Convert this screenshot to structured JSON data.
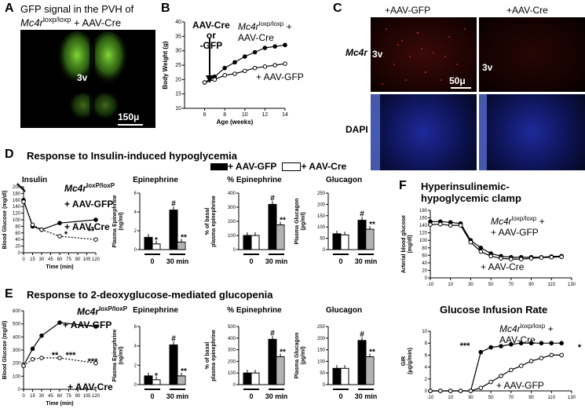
{
  "panels": {
    "A": "A",
    "B": "B",
    "C": "C",
    "D": "D",
    "E": "E",
    "F": "F"
  },
  "panelA": {
    "title_line1": "GFP signal in the  PVH of",
    "title_gene": "Mc4r",
    "title_sup": "loxp/loxp",
    "title_tail": " + AAV-Cre",
    "ventricle": "3v",
    "scale": "150μ"
  },
  "panelC": {
    "col1": "+AAV-GFP",
    "col2": "+AAV-Cre",
    "row1": "Mc4r",
    "row2": "DAPI",
    "ventricle": "3v",
    "scale": "50μ"
  },
  "titles": {
    "D": "Response to Insulin-induced hypoglycemia",
    "E": "Response to 2-deoxyglucose-mediated glucopenia",
    "F_clamp": "Hyperinsulinemic-\nhypoglycemic clamp",
    "F_gir": "Glucose Infusion Rate"
  },
  "legend": {
    "gfp": "+ AAV-GFP",
    "cre": "+ AAV-Cre"
  },
  "colors": {
    "filled": "#000000",
    "hatched": "#ffffff",
    "gfp_green": "#7fd83a",
    "mc4r_red": "#c0302a",
    "dapi_blue": "#3a5cff"
  },
  "chart_data": [
    {
      "id": "B",
      "type": "line",
      "xlabel": "Age (weeks)",
      "ylabel": "Body Weight (g)",
      "xlim": [
        4,
        14
      ],
      "ylim": [
        10,
        40
      ],
      "xticks": [
        6,
        8,
        10,
        12,
        14
      ],
      "yticks": [
        10,
        15,
        20,
        25,
        30,
        35,
        40
      ],
      "annotation": "AAV-Cre\nor\n-GFP",
      "series": [
        {
          "name": "Mc4r loxp/loxp + AAV-Cre",
          "marker": "filled",
          "x": [
            6,
            7,
            8,
            9,
            10,
            11,
            12,
            13,
            14
          ],
          "y": [
            19,
            21,
            24,
            26,
            28,
            29.5,
            31,
            31.5,
            32
          ]
        },
        {
          "name": "+ AAV-GFP",
          "marker": "open",
          "x": [
            6,
            7,
            8,
            9,
            10,
            11,
            12,
            13,
            14
          ],
          "y": [
            19,
            20,
            21.5,
            22,
            23,
            24,
            24.5,
            25,
            25.5
          ]
        }
      ]
    },
    {
      "id": "D1",
      "type": "line",
      "title": "Insulin",
      "xlabel": "Time (min)",
      "ylabel": "Blood Glucose (mg/dl)",
      "xlim": [
        0,
        120
      ],
      "ylim": [
        0,
        200
      ],
      "xticks": [
        0,
        15,
        30,
        45,
        60,
        75,
        90,
        105,
        120
      ],
      "yticks": [
        0,
        20,
        40,
        60,
        80,
        100,
        120,
        140,
        160,
        180,
        200
      ],
      "series": [
        {
          "name": "+ AAV-GFP",
          "marker": "filled",
          "x": [
            0,
            15,
            30,
            60,
            120
          ],
          "y": [
            160,
            80,
            70,
            90,
            100
          ]
        },
        {
          "name": "+ AAV-Cre",
          "marker": "open",
          "x": [
            0,
            15,
            30,
            60,
            120
          ],
          "y": [
            155,
            85,
            70,
            50,
            40
          ]
        }
      ],
      "stars": [
        "*",
        "**"
      ]
    },
    {
      "id": "D2",
      "type": "bar",
      "title": "Epinephrine",
      "ylabel": "Plasma Epinephrine\n(ng/ml)",
      "ylim": [
        0,
        6
      ],
      "yticks": [
        0,
        2,
        4,
        6
      ],
      "categories": [
        "0",
        "30 min"
      ],
      "series": [
        {
          "name": "+ AAV-GFP",
          "values": [
            1.3,
            4.2
          ]
        },
        {
          "name": "+ AAV-Cre",
          "values": [
            0.6,
            0.8
          ]
        }
      ],
      "marks": [
        "*",
        "#",
        "**"
      ]
    },
    {
      "id": "D3",
      "type": "bar",
      "title": "% Epinephrine",
      "ylabel": "% of basal\nplasma epinephrine",
      "ylim": [
        0,
        400
      ],
      "yticks": [
        0,
        100,
        200,
        300,
        400
      ],
      "categories": [
        "0",
        "30 min"
      ],
      "series": [
        {
          "name": "+ AAV-GFP",
          "values": [
            100,
            320
          ]
        },
        {
          "name": "+ AAV-Cre",
          "values": [
            100,
            175
          ]
        }
      ],
      "marks": [
        "#",
        "**"
      ]
    },
    {
      "id": "D4",
      "type": "bar",
      "title": "Glucagon",
      "ylabel": "Plasma Glucagon\n(pg/ml)",
      "ylim": [
        0,
        250
      ],
      "yticks": [
        0,
        50,
        100,
        150,
        200,
        250
      ],
      "categories": [
        "0",
        "30 min"
      ],
      "series": [
        {
          "name": "+ AAV-GFP",
          "values": [
            70,
            130
          ]
        },
        {
          "name": "+ AAV-Cre",
          "values": [
            65,
            90
          ]
        }
      ],
      "marks": [
        "#",
        "**"
      ]
    },
    {
      "id": "E1",
      "type": "line",
      "xlabel": "Time (min)",
      "ylabel": "Blood Glucose (mg/dl)",
      "xlim": [
        0,
        120
      ],
      "ylim": [
        0,
        600
      ],
      "xticks": [
        0,
        15,
        30,
        45,
        60,
        75,
        90,
        105,
        120
      ],
      "yticks": [
        0,
        100,
        200,
        300,
        400,
        500,
        600
      ],
      "series": [
        {
          "name": "+ AAV-GFP",
          "marker": "filled",
          "x": [
            0,
            15,
            30,
            60,
            120
          ],
          "y": [
            180,
            310,
            410,
            510,
            480
          ]
        },
        {
          "name": "+ AAV-Cre",
          "marker": "open",
          "x": [
            0,
            15,
            30,
            60,
            120
          ],
          "y": [
            180,
            230,
            240,
            240,
            200
          ]
        }
      ],
      "stars": [
        "**",
        "***",
        "***"
      ]
    },
    {
      "id": "E2",
      "type": "bar",
      "title": "Epinephrine",
      "ylabel": "Plasma Epinephrine\n(ng/ml)",
      "ylim": [
        0,
        6
      ],
      "yticks": [
        0,
        2,
        4,
        6
      ],
      "categories": [
        "0",
        "30 min"
      ],
      "series": [
        {
          "name": "+ AAV-GFP",
          "values": [
            0.9,
            4.1
          ]
        },
        {
          "name": "+ AAV-Cre",
          "values": [
            0.5,
            0.9
          ]
        }
      ],
      "marks": [
        "*",
        "#",
        "**"
      ]
    },
    {
      "id": "E3",
      "type": "bar",
      "title": "% Epinephrine",
      "ylabel": "% of basal\nplasma epinephrine",
      "ylim": [
        0,
        500
      ],
      "yticks": [
        0,
        100,
        200,
        300,
        400,
        500
      ],
      "categories": [
        "0",
        "30 min"
      ],
      "series": [
        {
          "name": "+ AAV-GFP",
          "values": [
            100,
            390
          ]
        },
        {
          "name": "+ AAV-Cre",
          "values": [
            100,
            240
          ]
        }
      ],
      "marks": [
        "#",
        "**"
      ]
    },
    {
      "id": "E4",
      "type": "bar",
      "title": "Glucagon",
      "ylabel": "Plasma Glucagon\n(pg/ml)",
      "ylim": [
        0,
        250
      ],
      "yticks": [
        0,
        50,
        100,
        150,
        200,
        250
      ],
      "categories": [
        "0",
        "30 min"
      ],
      "series": [
        {
          "name": "+ AAV-GFP",
          "values": [
            70,
            190
          ]
        },
        {
          "name": "+ AAV-Cre",
          "values": [
            70,
            120
          ]
        }
      ],
      "marks": [
        "#",
        "**"
      ]
    },
    {
      "id": "F1",
      "type": "line",
      "ylabel": "Arterial blood glucose\n(mg/dl)",
      "xlim": [
        -10,
        130
      ],
      "ylim": [
        0,
        180
      ],
      "xticks": [
        -10,
        10,
        30,
        50,
        70,
        90,
        110,
        130
      ],
      "yticks": [
        0,
        20,
        40,
        60,
        80,
        100,
        120,
        140,
        160,
        180
      ],
      "series": [
        {
          "name": "+ AAV-GFP",
          "marker": "filled",
          "x": [
            -10,
            0,
            10,
            20,
            30,
            40,
            50,
            60,
            70,
            80,
            90,
            100,
            110,
            120
          ],
          "y": [
            150,
            150,
            148,
            145,
            100,
            80,
            65,
            58,
            55,
            55,
            55,
            55,
            57,
            58
          ]
        },
        {
          "name": "+ AAV-Cre",
          "marker": "open",
          "x": [
            -10,
            0,
            10,
            20,
            30,
            40,
            50,
            60,
            70,
            80,
            90,
            100,
            110,
            120
          ],
          "y": [
            142,
            143,
            140,
            140,
            95,
            70,
            58,
            52,
            50,
            50,
            52,
            54,
            55,
            56
          ]
        }
      ]
    },
    {
      "id": "F2",
      "type": "line",
      "ylabel": "GIR\n(μg/g/min)",
      "xlim": [
        -10,
        130
      ],
      "ylim": [
        0,
        10
      ],
      "xticks": [
        -10,
        10,
        30,
        50,
        70,
        90,
        110,
        130
      ],
      "yticks": [
        0,
        2,
        4,
        6,
        8,
        10
      ],
      "series": [
        {
          "name": "Mc4r loxp/loxp + AAV-Cre",
          "marker": "filled",
          "x": [
            -10,
            0,
            10,
            20,
            30,
            40,
            50,
            60,
            70,
            80,
            90,
            100,
            110,
            120
          ],
          "y": [
            0,
            0,
            0,
            0,
            0,
            6.5,
            7.3,
            7.5,
            7.8,
            8,
            8,
            8,
            8,
            8
          ]
        },
        {
          "name": "+ AAV-GFP",
          "marker": "open",
          "x": [
            -10,
            0,
            10,
            20,
            30,
            40,
            50,
            60,
            70,
            80,
            90,
            100,
            110,
            120
          ],
          "y": [
            0,
            0,
            0,
            0,
            0,
            0.5,
            1.5,
            2.5,
            3.5,
            4.2,
            5,
            5.5,
            6,
            6
          ]
        }
      ],
      "stars": [
        "***",
        "*"
      ]
    }
  ],
  "labels": {
    "mc4r": "Mc4r",
    "loxP": "loxP/loxP",
    "loxp": "loxp/loxp",
    "gfp": "+ AAV-GFP",
    "cre": "+ AAV-Cre",
    "aavcre": "AAV-Cre",
    "plus_gfp": "+ AAV-GFP",
    "plus_cre": "+ AAV-Cre",
    "time": "Time (min)",
    "age": "Age (weeks)",
    "x0": "0",
    "x30": "30 min"
  }
}
